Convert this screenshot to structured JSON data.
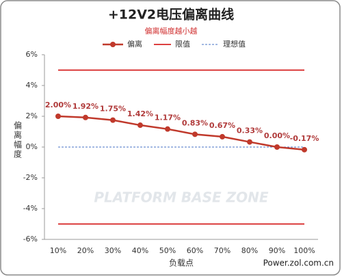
{
  "chart_data": {
    "type": "line",
    "title": "+12V2电压偏离曲线",
    "subtitle": "偏离幅度越小越",
    "y_label": "偏离幅度",
    "x_label": "负载点",
    "source": "Power.zol.com.cn",
    "watermark": "PLATFORM BASE ZONE",
    "categories": [
      "10%",
      "20%",
      "30%",
      "40%",
      "50%",
      "60%",
      "70%",
      "80%",
      "90%",
      "100%"
    ],
    "series": [
      {
        "name": "偏离",
        "color": "#c0392b",
        "values": [
          2.0,
          1.92,
          1.75,
          1.42,
          1.17,
          0.83,
          0.67,
          0.33,
          0.0,
          -0.17
        ],
        "value_labels": [
          "2.00%",
          "1.92%",
          "1.75%",
          "1.42%",
          "1.17%",
          "0.83%",
          "0.67%",
          "0.33%",
          "0.00%",
          "-0.17%"
        ]
      }
    ],
    "reference_lines": [
      {
        "name": "限值",
        "color": "#d00000",
        "values": [
          5,
          -5
        ]
      },
      {
        "name": "理想值",
        "color": "#4472c4",
        "dashed": true,
        "values": [
          0
        ]
      }
    ],
    "ylim": [
      -6,
      6
    ],
    "yticks": [
      {
        "value": -6,
        "label": "-6%"
      },
      {
        "value": -4,
        "label": "-4%"
      },
      {
        "value": -2,
        "label": "-2%"
      },
      {
        "value": 0,
        "label": "0%"
      },
      {
        "value": 2,
        "label": "2%"
      },
      {
        "value": 4,
        "label": "4%"
      },
      {
        "value": 6,
        "label": "6%"
      }
    ],
    "grid": false
  }
}
